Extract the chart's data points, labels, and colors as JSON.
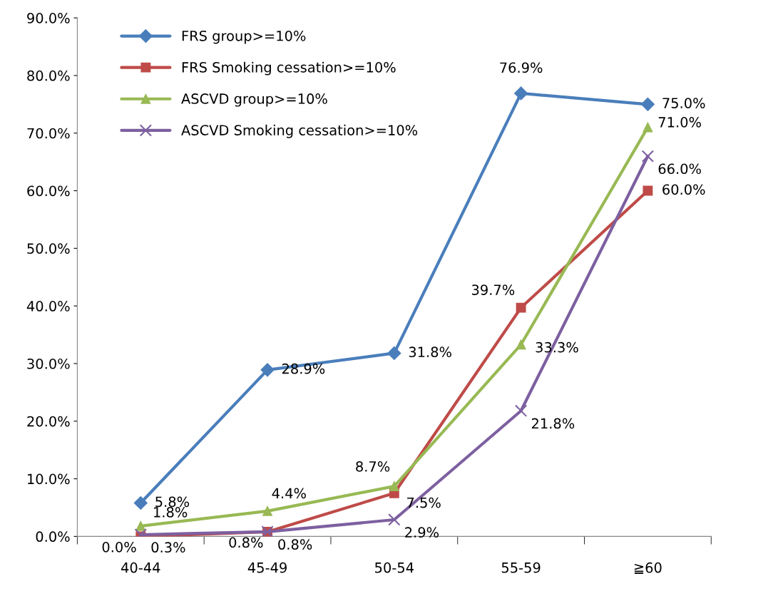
{
  "chart_data": {
    "type": "line",
    "categories": [
      "40-44",
      "45-49",
      "50-54",
      "55-59",
      "≧60"
    ],
    "series": [
      {
        "name": "FRS group>=10%",
        "color": "#4a7ebb",
        "marker": "diamond",
        "values": [
          5.8,
          28.9,
          31.8,
          76.9,
          75.0
        ],
        "value_labels": [
          "5.8%",
          "28.9%",
          "31.8%",
          "76.9%",
          "75.0%"
        ]
      },
      {
        "name": "FRS Smoking cessation>=10%",
        "color": "#be4b48",
        "marker": "square",
        "values": [
          0.0,
          0.8,
          7.5,
          39.7,
          60.0
        ],
        "value_labels": [
          "0.0%",
          "0.8%",
          "7.5%",
          "39.7%",
          "60.0%"
        ]
      },
      {
        "name": "ASCVD group>=10%",
        "color": "#98b954",
        "marker": "triangle",
        "values": [
          1.8,
          4.4,
          8.7,
          33.3,
          71.0
        ],
        "value_labels": [
          "1.8%",
          "4.4%",
          "8.7%",
          "33.3%",
          "71.0%"
        ]
      },
      {
        "name": "ASCVD Smoking cessation>=10%",
        "color": "#7d60a0",
        "marker": "cross",
        "values": [
          0.3,
          0.8,
          2.9,
          21.8,
          66.0
        ],
        "value_labels": [
          "0.3%",
          "0.8%",
          "2.9%",
          "21.8%",
          "66.0%"
        ]
      }
    ],
    "ylim": [
      0,
      90
    ],
    "yticks": [
      {
        "value": 0,
        "label": "0.0%"
      },
      {
        "value": 10,
        "label": "10.0%"
      },
      {
        "value": 20,
        "label": "20.0%"
      },
      {
        "value": 30,
        "label": "30.0%"
      },
      {
        "value": 40,
        "label": "40.0%"
      },
      {
        "value": 50,
        "label": "50.0%"
      },
      {
        "value": 60,
        "label": "60.0%"
      },
      {
        "value": 70,
        "label": "70.0%"
      },
      {
        "value": 80,
        "label": "80.0%"
      },
      {
        "value": 90,
        "label": "90.0%"
      }
    ],
    "grid": false,
    "legend": "top left",
    "line_style": "solid"
  }
}
